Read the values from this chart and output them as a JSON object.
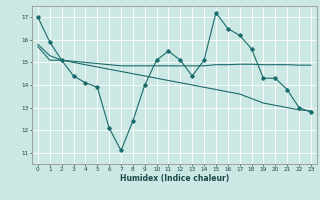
{
  "xlabel": "Humidex (Indice chaleur)",
  "xlim": [
    -0.5,
    23.5
  ],
  "ylim": [
    10.5,
    17.5
  ],
  "yticks": [
    11,
    12,
    13,
    14,
    15,
    16,
    17
  ],
  "xticks": [
    0,
    1,
    2,
    3,
    4,
    5,
    6,
    7,
    8,
    9,
    10,
    11,
    12,
    13,
    14,
    15,
    16,
    17,
    18,
    19,
    20,
    21,
    22,
    23
  ],
  "background_color": "#cce8e4",
  "grid_color": "#ffffff",
  "line_color": "#1a6b6b",
  "line1_x": [
    0,
    1,
    2,
    3,
    4,
    5,
    6,
    7,
    8,
    9,
    10,
    11,
    12,
    13,
    14,
    15,
    16,
    17,
    18,
    19,
    20,
    21,
    22,
    23
  ],
  "line1_y": [
    17.0,
    15.9,
    15.1,
    14.4,
    14.1,
    13.9,
    12.1,
    11.1,
    12.4,
    14.0,
    15.1,
    15.5,
    15.1,
    14.4,
    15.1,
    17.2,
    16.5,
    16.2,
    15.6,
    14.3,
    14.3,
    13.8,
    13.0,
    12.8
  ],
  "line2_x": [
    0,
    1,
    2,
    3,
    4,
    5,
    6,
    7,
    8,
    9,
    10,
    11,
    12,
    13,
    14,
    15,
    16,
    17,
    18,
    19,
    20,
    21,
    22,
    23
  ],
  "line2_y": [
    15.8,
    15.3,
    15.1,
    15.0,
    14.9,
    14.8,
    14.7,
    14.6,
    14.5,
    14.4,
    14.3,
    14.2,
    14.1,
    14.0,
    13.9,
    13.8,
    13.7,
    13.6,
    13.4,
    13.2,
    13.1,
    13.0,
    12.9,
    12.85
  ],
  "line3_x": [
    0,
    1,
    2,
    3,
    4,
    5,
    6,
    7,
    8,
    9,
    10,
    11,
    12,
    13,
    14,
    15,
    16,
    17,
    18,
    19,
    20,
    21,
    22,
    23
  ],
  "line3_y": [
    15.7,
    15.1,
    15.1,
    15.05,
    15.0,
    14.95,
    14.9,
    14.85,
    14.85,
    14.85,
    14.85,
    14.85,
    14.85,
    14.85,
    14.85,
    14.9,
    14.9,
    14.92,
    14.92,
    14.9,
    14.9,
    14.9,
    14.88,
    14.88
  ]
}
